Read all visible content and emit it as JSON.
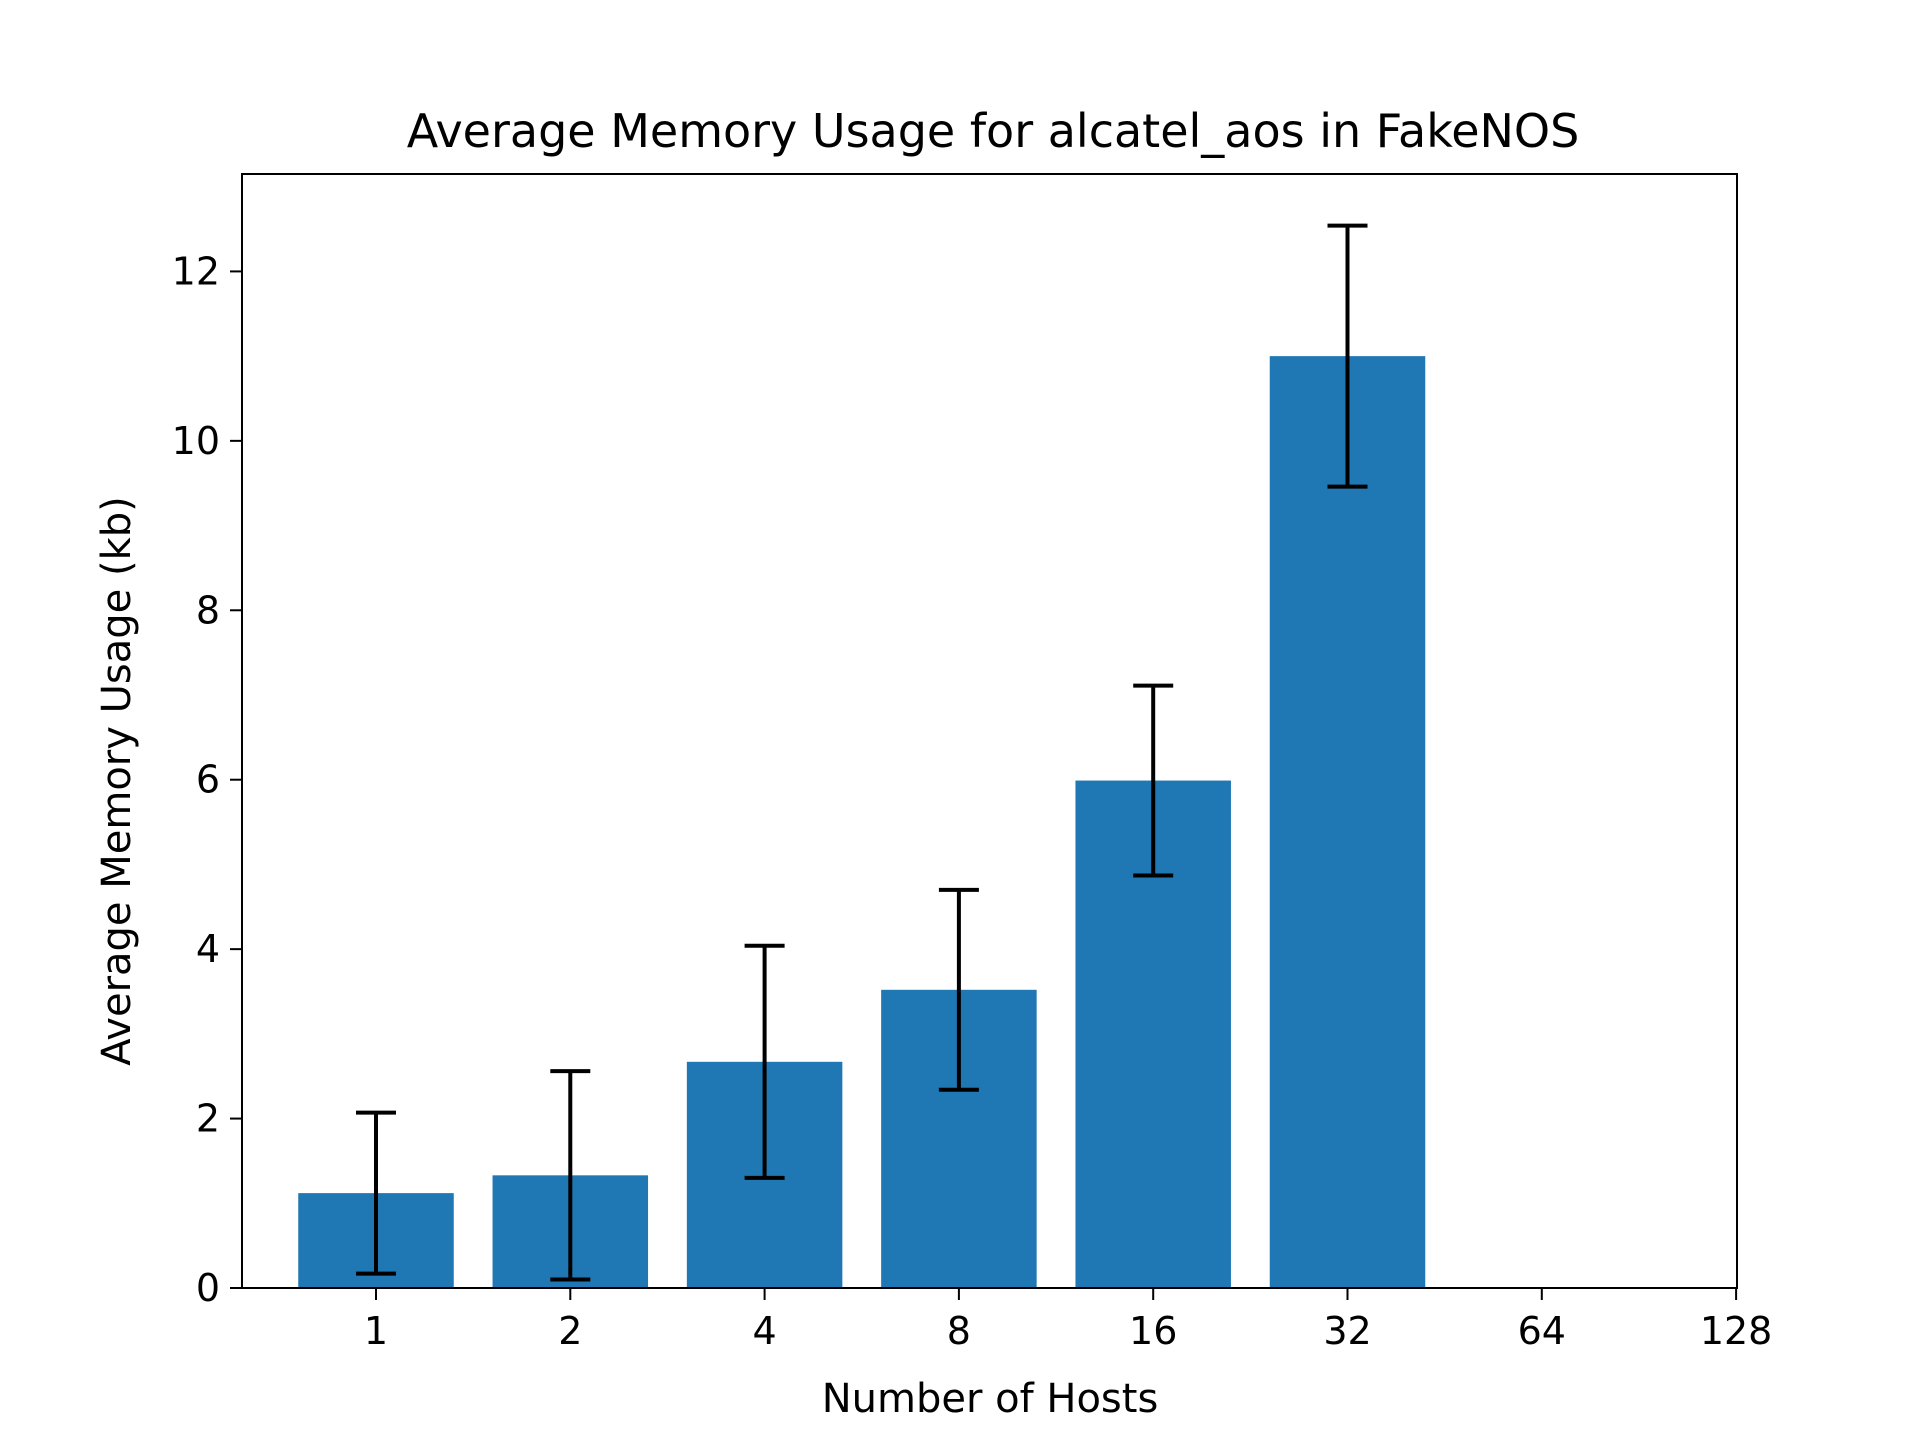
{
  "chart_data": {
    "type": "bar",
    "title": "Average Memory Usage for alcatel_aos in FakeNOS",
    "xlabel": "Number of Hosts",
    "ylabel": "Average Memory Usage (kb)",
    "categories": [
      "1",
      "2",
      "4",
      "8",
      "16",
      "32",
      "64",
      "128"
    ],
    "values": [
      1.12,
      1.33,
      2.67,
      3.52,
      5.99,
      11.0,
      null,
      null
    ],
    "errors": [
      0.95,
      1.23,
      1.37,
      1.18,
      1.12,
      1.54,
      null,
      null
    ],
    "ylim": [
      0,
      13.15
    ],
    "yticks": [
      0,
      2,
      4,
      6,
      8,
      10,
      12
    ],
    "grid": false,
    "legend": "none",
    "bar_color": "#1f77b4",
    "error_color": "#000000"
  }
}
